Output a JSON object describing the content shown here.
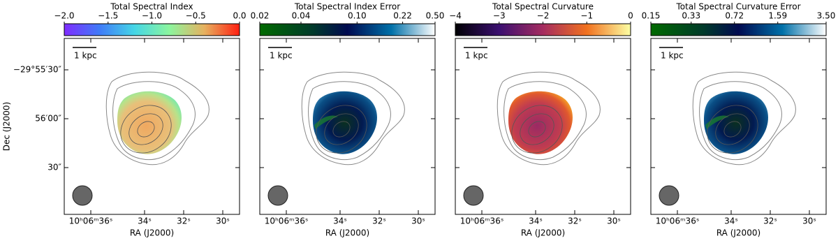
{
  "figure": {
    "y_axis_label": "Dec (J2000)",
    "y_ticks": [
      "−29°55′30″",
      "56′00″",
      "30″"
    ],
    "panels": [
      {
        "title": "Total Spectral Index",
        "colorbar_ticks": [
          "−2.0",
          "−1.5",
          "−1.0",
          "−0.5",
          "0.0"
        ],
        "scale_bar": "1 kpc",
        "x_ticks": [
          "10ʰ06ᵐ36ˢ",
          "34ˢ",
          "32ˢ",
          "30ˢ"
        ],
        "x_axis_label": "RA (J2000)"
      },
      {
        "title": "Total Spectral Index Error",
        "colorbar_ticks": [
          "0.02",
          "0.04",
          "0.10",
          "0.22",
          "0.50"
        ],
        "scale_bar": "1 kpc",
        "x_ticks": [
          "10ʰ06ᵐ36ˢ",
          "34ˢ",
          "32ˢ",
          "30ˢ"
        ],
        "x_axis_label": "RA (J2000)"
      },
      {
        "title": "Total Spectral Curvature",
        "colorbar_ticks": [
          "−4",
          "−3",
          "−2",
          "−1",
          "0"
        ],
        "scale_bar": "1 kpc",
        "x_ticks": [
          "10ʰ06ᵐ36ˢ",
          "34ˢ",
          "32ˢ",
          "30ˢ"
        ],
        "x_axis_label": "RA (J2000)"
      },
      {
        "title": "Total Spectral Curvature Error",
        "colorbar_ticks": [
          "0.15",
          "0.33",
          "0.72",
          "1.59",
          "3.50"
        ],
        "scale_bar": "1 kpc",
        "x_ticks": [
          "10ʰ06ᵐ36ˢ",
          "34ˢ",
          "32ˢ",
          "30ˢ"
        ],
        "x_axis_label": "RA (J2000)"
      }
    ]
  }
}
